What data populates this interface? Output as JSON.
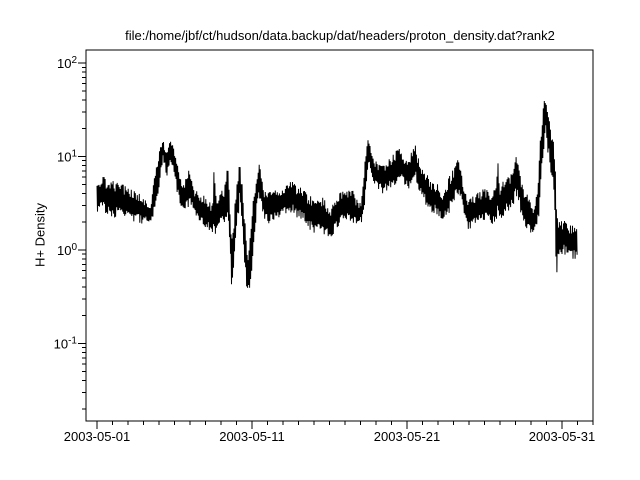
{
  "window": {
    "background": "#ffffff",
    "foreground": "#000000"
  },
  "chart_data": {
    "type": "line",
    "title": "file:/home/jbf/ct/hudson/data.backup/dat/headers/proton_density.dat?rank2",
    "ylabel": "H+ Density",
    "xlabel": "",
    "grid": false,
    "legend": null,
    "x_axis": {
      "kind": "time",
      "range_days": [
        -0.71,
        32.0
      ],
      "major_ticks": [
        {
          "day": 0,
          "label": "2003-05-01"
        },
        {
          "day": 10,
          "label": "2003-05-11"
        },
        {
          "day": 20,
          "label": "2003-05-21"
        },
        {
          "day": 30,
          "label": "2003-05-31"
        }
      ],
      "minor_tick_every_days": 1
    },
    "y_axis": {
      "scale": "log",
      "range": [
        0.0148,
        137.7
      ],
      "major_ticks": [
        {
          "value": 0.1,
          "base": "10",
          "exponent": "-1"
        },
        {
          "value": 1,
          "base": "10",
          "exponent": "0"
        },
        {
          "value": 10,
          "base": "10",
          "exponent": "1"
        },
        {
          "value": 100,
          "base": "10",
          "exponent": "2"
        }
      ],
      "minor_tick_mantissas": [
        2,
        3,
        4,
        5,
        6,
        7,
        8,
        9
      ]
    },
    "series": {
      "name": "proton density",
      "color": "#000000",
      "envelope_day_lo_hi": [
        [
          0.0,
          2.5,
          6.0
        ],
        [
          0.4,
          2.5,
          6.4
        ],
        [
          0.8,
          2.3,
          5.2
        ],
        [
          1.1,
          2.2,
          5.6
        ],
        [
          1.5,
          2.4,
          5.2
        ],
        [
          1.9,
          2.1,
          4.8
        ],
        [
          2.4,
          2.0,
          4.4
        ],
        [
          2.9,
          1.9,
          3.8
        ],
        [
          3.2,
          2.0,
          3.4
        ],
        [
          3.45,
          2.0,
          2.9
        ],
        [
          3.7,
          2.5,
          6.0
        ],
        [
          4.0,
          5.0,
          12.0
        ],
        [
          4.25,
          9.0,
          17.0
        ],
        [
          4.45,
          6.0,
          11.0
        ],
        [
          4.7,
          8.0,
          14.5
        ],
        [
          4.9,
          7.5,
          14.0
        ],
        [
          5.15,
          4.0,
          9.0
        ],
        [
          5.35,
          3.0,
          6.0
        ],
        [
          5.6,
          2.5,
          5.2
        ],
        [
          5.95,
          3.0,
          7.3
        ],
        [
          6.3,
          2.2,
          4.6
        ],
        [
          6.8,
          1.8,
          4.0
        ],
        [
          7.2,
          1.6,
          3.4
        ],
        [
          7.45,
          1.5,
          3.0
        ],
        [
          7.55,
          1.4,
          9.0
        ],
        [
          7.7,
          1.6,
          3.6
        ],
        [
          8.0,
          1.8,
          4.2
        ],
        [
          8.25,
          2.0,
          5.0
        ],
        [
          8.42,
          2.5,
          9.3
        ],
        [
          8.55,
          0.8,
          4.0
        ],
        [
          8.68,
          0.33,
          1.5
        ],
        [
          8.85,
          0.7,
          2.5
        ],
        [
          9.05,
          2.0,
          6.0
        ],
        [
          9.2,
          3.5,
          8.6
        ],
        [
          9.4,
          1.0,
          5.0
        ],
        [
          9.6,
          0.4,
          1.6
        ],
        [
          9.75,
          0.31,
          1.0
        ],
        [
          9.95,
          0.5,
          1.8
        ],
        [
          10.15,
          1.5,
          5.0
        ],
        [
          10.4,
          4.0,
          8.3
        ],
        [
          10.55,
          3.0,
          8.0
        ],
        [
          10.8,
          2.0,
          4.6
        ],
        [
          11.1,
          1.9,
          4.2
        ],
        [
          11.5,
          2.0,
          4.5
        ],
        [
          12.0,
          2.3,
          5.0
        ],
        [
          12.5,
          2.5,
          5.5
        ],
        [
          12.9,
          2.2,
          5.0
        ],
        [
          13.3,
          2.0,
          4.6
        ],
        [
          13.7,
          1.6,
          3.8
        ],
        [
          14.1,
          1.5,
          3.6
        ],
        [
          14.5,
          1.5,
          3.8
        ],
        [
          14.8,
          1.4,
          3.2
        ],
        [
          15.05,
          1.2,
          2.6
        ],
        [
          15.3,
          1.6,
          3.6
        ],
        [
          15.7,
          1.9,
          4.2
        ],
        [
          16.1,
          2.0,
          4.6
        ],
        [
          16.5,
          1.9,
          4.4
        ],
        [
          16.8,
          1.8,
          3.4
        ],
        [
          17.05,
          2.0,
          3.2
        ],
        [
          17.25,
          3.0,
          9.0
        ],
        [
          17.5,
          9.0,
          18.6
        ],
        [
          17.7,
          5.5,
          12.0
        ],
        [
          18.0,
          4.5,
          9.0
        ],
        [
          18.4,
          4.0,
          8.0
        ],
        [
          18.8,
          4.5,
          9.5
        ],
        [
          19.2,
          5.0,
          11.0
        ],
        [
          19.5,
          6.0,
          13.0
        ],
        [
          19.8,
          5.0,
          10.0
        ],
        [
          20.1,
          4.5,
          9.0
        ],
        [
          20.5,
          6.0,
          14.0
        ],
        [
          20.8,
          4.0,
          9.0
        ],
        [
          21.2,
          3.0,
          6.8
        ],
        [
          21.6,
          2.5,
          5.5
        ],
        [
          22.0,
          2.3,
          5.0
        ],
        [
          22.3,
          2.1,
          4.0
        ],
        [
          22.7,
          2.5,
          6.0
        ],
        [
          23.1,
          3.5,
          8.0
        ],
        [
          23.35,
          4.0,
          9.8
        ],
        [
          23.6,
          2.5,
          6.0
        ],
        [
          23.9,
          1.6,
          3.4
        ],
        [
          24.2,
          1.7,
          3.8
        ],
        [
          24.6,
          1.9,
          4.2
        ],
        [
          25.0,
          2.0,
          4.7
        ],
        [
          25.4,
          1.8,
          4.2
        ],
        [
          25.75,
          2.0,
          5.0
        ],
        [
          25.85,
          2.5,
          11.9
        ],
        [
          26.0,
          2.0,
          5.0
        ],
        [
          26.4,
          2.5,
          6.0
        ],
        [
          26.8,
          3.0,
          7.0
        ],
        [
          27.05,
          3.5,
          11.5
        ],
        [
          27.3,
          2.5,
          6.5
        ],
        [
          27.6,
          1.8,
          4.5
        ],
        [
          27.9,
          1.5,
          3.5
        ],
        [
          28.2,
          1.45,
          2.8
        ],
        [
          28.45,
          2.0,
          6.0
        ],
        [
          28.65,
          6.0,
          20.0
        ],
        [
          28.9,
          18.0,
          49.0
        ],
        [
          29.1,
          9.0,
          30.0
        ],
        [
          29.3,
          6.0,
          19.0
        ],
        [
          29.48,
          4.0,
          15.0
        ],
        [
          29.6,
          0.42,
          6.0
        ],
        [
          29.75,
          0.8,
          2.2
        ],
        [
          30.0,
          0.9,
          2.1
        ],
        [
          30.3,
          0.85,
          2.0
        ],
        [
          30.6,
          0.8,
          1.9
        ],
        [
          30.85,
          0.75,
          1.8
        ],
        [
          31.0,
          0.8,
          1.6
        ]
      ]
    }
  }
}
